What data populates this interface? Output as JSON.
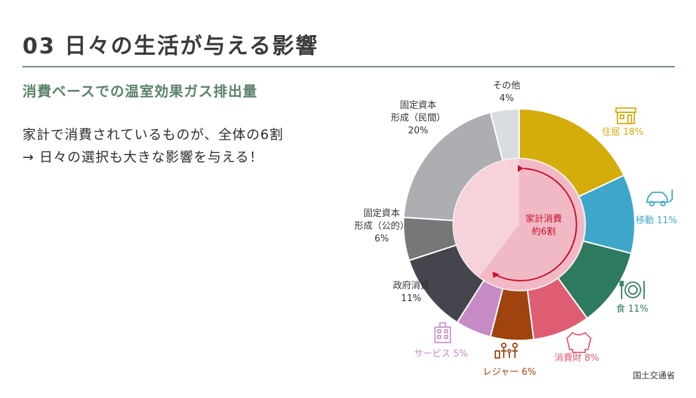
{
  "header": {
    "title": "03 日々の生活が与える影響",
    "subtitle": "消費ベースでの温室効果ガス排出量"
  },
  "body": {
    "line1": "家計で消費されているものが、全体の6割",
    "line2": "→ 日々の選択も大きな影響を与える！"
  },
  "source": "国土交通省",
  "center_label": {
    "line1": "家計消費",
    "line2": "約6割"
  },
  "icons": [
    "house-icon",
    "car-icon",
    "plate-icon",
    "sweater-icon",
    "family-icon",
    "building-icon"
  ],
  "colors": {
    "accent_green": "#5a8269",
    "center_fill": "#f1b9c5",
    "center_ring": "#f6d3da",
    "arrow": "#c8102e"
  },
  "chart_data": {
    "type": "pie",
    "variant": "donut",
    "title": "",
    "slices": [
      {
        "name": "住居",
        "value": 18,
        "label": "住居 18%",
        "color": "#d4ad0b",
        "icon": "house-icon"
      },
      {
        "name": "移動",
        "value": 11,
        "label": "移動 11%",
        "color": "#3ea7c9",
        "icon": "car-icon"
      },
      {
        "name": "食",
        "value": 11,
        "label": "食 11%",
        "color": "#2e7a5e",
        "icon": "plate-icon"
      },
      {
        "name": "消費財",
        "value": 8,
        "label": "消費財 8%",
        "color": "#df5d73",
        "icon": "sweater-icon"
      },
      {
        "name": "レジャー",
        "value": 6,
        "label": "レジャー 6%",
        "color": "#a0430e",
        "icon": "family-icon"
      },
      {
        "name": "サービス",
        "value": 5,
        "label": "サービス 5%",
        "color": "#c68bc4",
        "icon": "building-icon"
      },
      {
        "name": "政府消費",
        "value": 11,
        "label": "政府消費\n11%",
        "color": "#45454d"
      },
      {
        "name": "固定資本形成（公的）",
        "value": 6,
        "label": "固定資本\n形成（公的）\n6%",
        "color": "#777777"
      },
      {
        "name": "固定資本形成（民間）",
        "value": 20,
        "label": "固定資本\n形成（民間）\n20%",
        "color": "#acaeb1"
      },
      {
        "name": "その他",
        "value": 4,
        "label": "その他\n4%",
        "color": "#d9dde0"
      }
    ]
  }
}
